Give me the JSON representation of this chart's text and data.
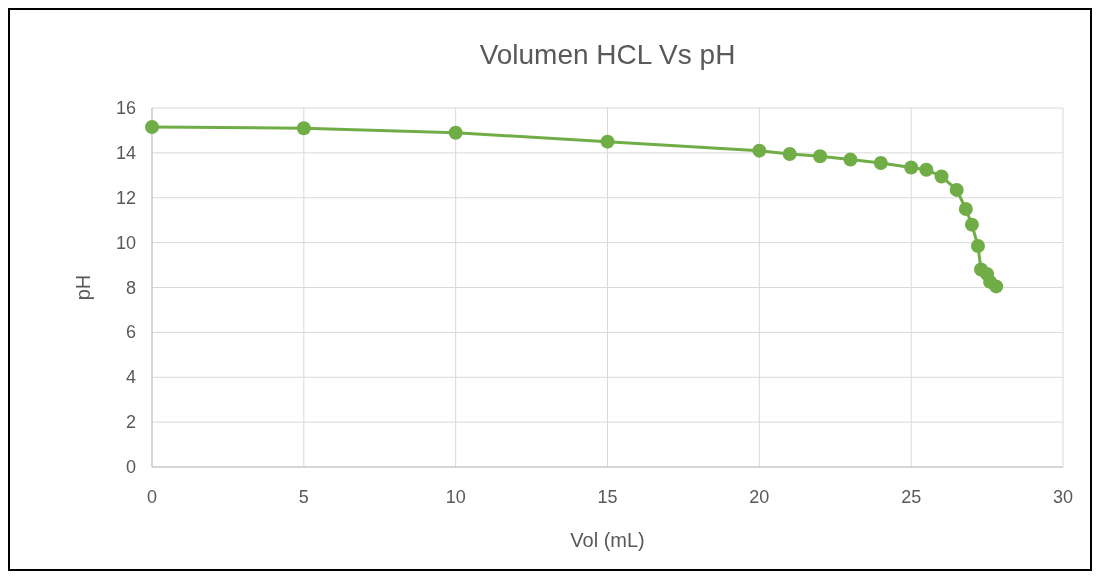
{
  "chart_data": {
    "type": "line",
    "title": "Volumen HCL Vs pH",
    "xlabel": "Vol (mL)",
    "ylabel": "pH",
    "x": [
      0,
      5,
      10,
      15,
      20,
      21,
      22,
      23,
      24,
      25,
      25.5,
      26,
      26.5,
      26.8,
      27,
      27.2,
      27.3,
      27.5,
      27.6,
      27.8
    ],
    "series": [
      {
        "color": "#70ad47",
        "values": [
          15.15,
          15.1,
          14.9,
          14.5,
          14.1,
          13.95,
          13.85,
          13.7,
          13.55,
          13.35,
          13.25,
          12.95,
          12.35,
          11.5,
          10.8,
          9.85,
          8.8,
          8.6,
          8.25,
          8.05
        ]
      }
    ],
    "xlim": [
      0,
      30
    ],
    "xticks": [
      0,
      5,
      10,
      15,
      20,
      25,
      30
    ],
    "ylim": [
      0,
      16
    ],
    "yticks": [
      0,
      2,
      4,
      6,
      8,
      10,
      12,
      14,
      16
    ],
    "grid": true,
    "marker": "circle",
    "line_style": "solid"
  }
}
